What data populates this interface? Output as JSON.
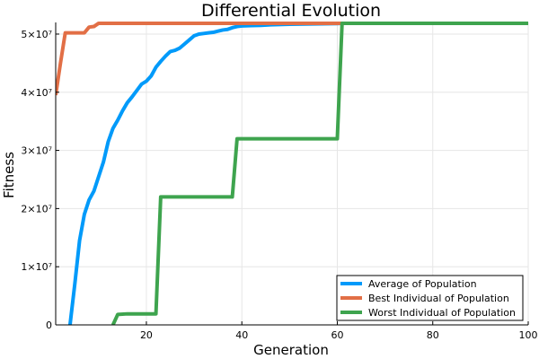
{
  "chart_data": {
    "type": "line",
    "title": "Differential Evolution",
    "xlabel": "Generation",
    "ylabel": "Fitness",
    "xlim": [
      1,
      100
    ],
    "ylim": [
      0,
      52000000
    ],
    "grid": true,
    "legend_position": "bottom-right",
    "x_ticks": [
      {
        "value": 20,
        "label": "20"
      },
      {
        "value": 40,
        "label": "40"
      },
      {
        "value": 60,
        "label": "60"
      },
      {
        "value": 80,
        "label": "80"
      },
      {
        "value": 100,
        "label": "100"
      }
    ],
    "y_ticks": [
      {
        "value": 0,
        "label": "0"
      },
      {
        "value": 10000000,
        "label": "1×10⁷"
      },
      {
        "value": 20000000,
        "label": "2×10⁷"
      },
      {
        "value": 30000000,
        "label": "3×10⁷"
      },
      {
        "value": 40000000,
        "label": "4×10⁷"
      },
      {
        "value": 50000000,
        "label": "5×10⁷"
      }
    ],
    "series": [
      {
        "name": "Average of Population",
        "color": "#009AFA",
        "x": [
          4,
          5,
          6,
          7,
          8,
          9,
          10,
          11,
          12,
          13,
          14,
          15,
          16,
          17,
          18,
          19,
          20,
          21,
          22,
          23,
          24,
          25,
          26,
          27,
          28,
          29,
          30,
          31,
          32,
          33,
          34,
          35,
          36,
          37,
          38,
          39,
          40,
          42,
          44,
          46,
          50,
          55,
          60,
          61,
          100
        ],
        "y": [
          0,
          7000000,
          14500000,
          19000000,
          21500000,
          23000000,
          25500000,
          28000000,
          31500000,
          33800000,
          35200000,
          36800000,
          38200000,
          39200000,
          40300000,
          41400000,
          41900000,
          42800000,
          44300000,
          45300000,
          46200000,
          47000000,
          47200000,
          47600000,
          48300000,
          49000000,
          49700000,
          50000000,
          50100000,
          50200000,
          50300000,
          50500000,
          50700000,
          50800000,
          51100000,
          51300000,
          51400000,
          51450000,
          51500000,
          51600000,
          51700000,
          51750000,
          51800000,
          51850000,
          51850000
        ]
      },
      {
        "name": "Best Individual of Population",
        "color": "#E26F46",
        "x": [
          1,
          2,
          3,
          4,
          5,
          6,
          7,
          8,
          9,
          10,
          100
        ],
        "y": [
          39500000,
          45000000,
          50200000,
          50200000,
          50200000,
          50200000,
          50200000,
          51200000,
          51300000,
          51850000,
          51850000
        ]
      },
      {
        "name": "Worst Individual of Population",
        "color": "#3EA44E",
        "x": [
          13,
          14,
          16,
          22,
          23,
          38,
          39,
          60,
          61,
          100
        ],
        "y": [
          0,
          1800000,
          1900000,
          1900000,
          22000000,
          22000000,
          32000000,
          32000000,
          51850000,
          51850000
        ]
      }
    ]
  }
}
